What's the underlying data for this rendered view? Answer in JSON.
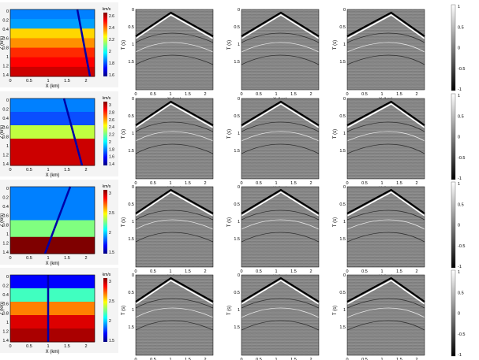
{
  "colors": {
    "velocity_ramp": [
      "#00007f",
      "#0000ff",
      "#0080ff",
      "#00ffff",
      "#80ff80",
      "#ffff00",
      "#ff8000",
      "#ff0000",
      "#7f0000"
    ],
    "grayscale_ramp": [
      "#000000",
      "#ffffff"
    ],
    "gather_background": "#868686",
    "fault_line": "#0000a8"
  },
  "colorbar": {
    "ticks": [
      "1",
      "0.5",
      "0",
      "-0.5",
      "-1"
    ]
  },
  "rows": [
    {
      "model": {
        "layer_colors": [
          "#0080ff",
          "#00a0ff",
          "#ffd700",
          "#ff9000",
          "#ff2a00",
          "#ff0000",
          "#cc0000"
        ],
        "units": "km/s",
        "colorbar_ticks": [
          "2.6",
          "2.4",
          "2.2",
          "2",
          "1.8",
          "1.6"
        ]
      }
    },
    {
      "model": {
        "layer_colors": [
          "#0080ff",
          "#0a4eff",
          "#c0ff40",
          "#cc0000",
          "#cc0000"
        ],
        "units": "km/s",
        "colorbar_ticks": [
          "3",
          "2.8",
          "2.6",
          "2.4",
          "2.2",
          "2",
          "1.8",
          "1.6",
          "1.4"
        ]
      }
    },
    {
      "model": {
        "layer_colors": [
          "#0080ff",
          "#0080ff",
          "#80ff80",
          "#7f0000"
        ],
        "units": "km/s",
        "colorbar_ticks": [
          "3",
          "2.5",
          "2",
          "1.5"
        ]
      }
    },
    {
      "model": {
        "layer_colors": [
          "#0000ff",
          "#40ffc0",
          "#ff8000",
          "#dd0000",
          "#aa0000"
        ],
        "units": "km/s",
        "colorbar_ticks": [
          "3",
          "2.5",
          "2",
          "1.5"
        ]
      }
    }
  ],
  "model_axes": {
    "y_ticks": [
      "0",
      "0.2",
      "0.4",
      "0.6",
      "0.8",
      "1",
      "1.2",
      "1.4"
    ],
    "x_ticks": [
      "0",
      "0.5",
      "1",
      "1.5",
      "2"
    ],
    "ylabel": "Z (km)",
    "xlabel": "X (km)"
  },
  "gather_axes": {
    "y_ticks": [
      "0",
      "0.5",
      "1",
      "1.5"
    ],
    "x_ticks": [
      "0",
      "0.5",
      "1",
      "1.5",
      "2"
    ],
    "ylabel": "T (s)",
    "xlabel": "X (km)"
  }
}
